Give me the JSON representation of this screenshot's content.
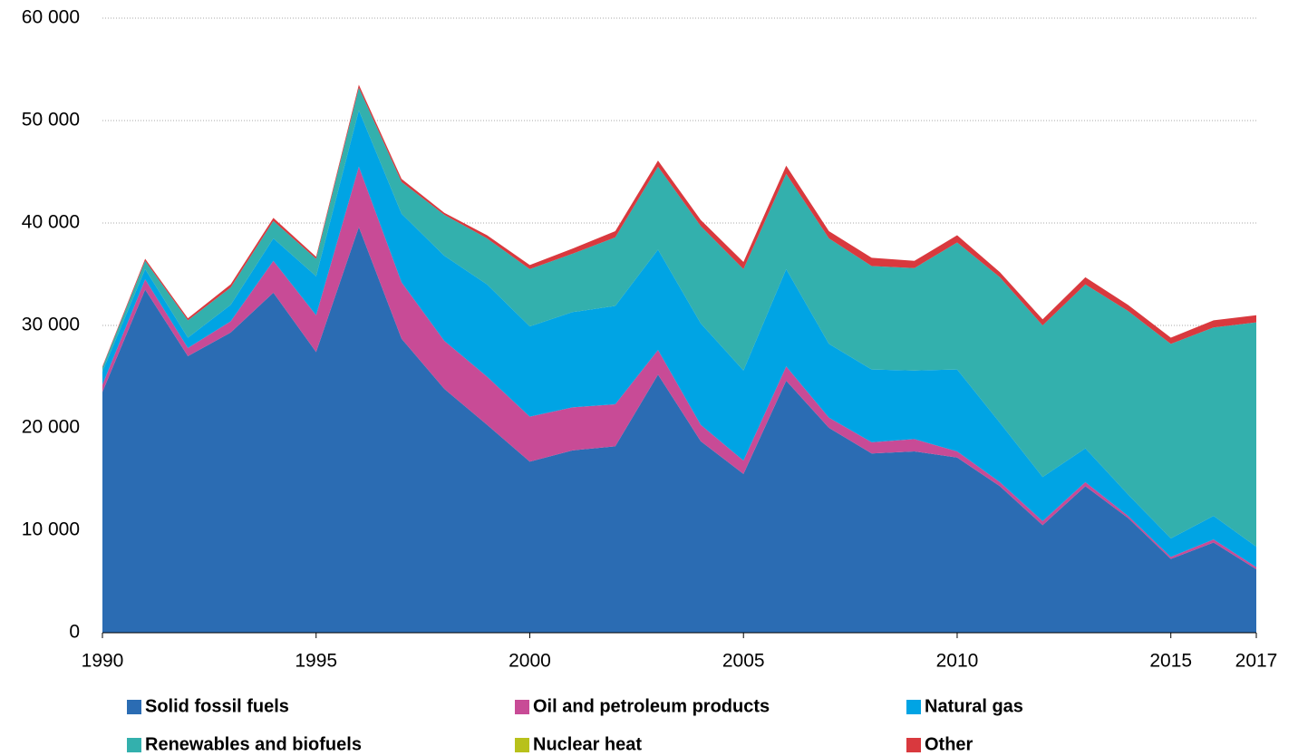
{
  "chart_data": {
    "type": "stacked_area",
    "x": [
      1990,
      1991,
      1992,
      1993,
      1994,
      1995,
      1996,
      1997,
      1998,
      1999,
      2000,
      2001,
      2002,
      2003,
      2004,
      2005,
      2006,
      2007,
      2008,
      2009,
      2010,
      2011,
      2012,
      2013,
      2014,
      2015,
      2016,
      2017
    ],
    "xlim": [
      1990,
      2017
    ],
    "xticks": [
      1990,
      1995,
      2000,
      2005,
      2010,
      2015,
      2017
    ],
    "ylim": [
      0,
      60000
    ],
    "yticks": [
      0,
      {
        "value": 10000,
        "label": "10 000"
      },
      {
        "value": 20000,
        "label": "20 000"
      },
      {
        "value": 30000,
        "label": "30 000"
      },
      {
        "value": 40000,
        "label": "40 000"
      },
      {
        "value": 50000,
        "label": "50 000"
      },
      {
        "value": 60000,
        "label": "60 000"
      }
    ],
    "grid": true,
    "series": [
      {
        "name": "Solid fossil fuels",
        "color": "#2b6cb3",
        "values": [
          23500,
          33500,
          27000,
          29300,
          33200,
          27400,
          39600,
          28700,
          23800,
          20300,
          16700,
          17800,
          18200,
          25200,
          18700,
          15500,
          24600,
          20000,
          17500,
          17700,
          17100,
          14300,
          10500,
          14300,
          11200,
          7200,
          8800,
          6200
        ]
      },
      {
        "name": "Oil and petroleum products",
        "color": "#c84b96",
        "values": [
          700,
          1000,
          800,
          1100,
          3100,
          3600,
          5900,
          5500,
          4700,
          4700,
          4400,
          4200,
          4100,
          2400,
          1600,
          1300,
          1400,
          1000,
          1100,
          1200,
          600,
          400,
          400,
          400,
          200,
          200,
          300,
          200
        ]
      },
      {
        "name": "Natural gas",
        "color": "#00a4e4",
        "values": [
          1300,
          1000,
          1000,
          1600,
          2200,
          3800,
          5500,
          6700,
          8300,
          9000,
          8800,
          9300,
          9600,
          9800,
          9900,
          8800,
          9500,
          7200,
          7100,
          6700,
          8000,
          5800,
          4300,
          3300,
          2100,
          1800,
          2300,
          2000
        ]
      },
      {
        "name": "Renewables and biofuels",
        "color": "#33b0ad",
        "values": [
          400,
          800,
          1700,
          1700,
          1700,
          1700,
          2200,
          3100,
          4000,
          4500,
          5600,
          5700,
          6700,
          8100,
          9500,
          9900,
          9300,
          10300,
          10100,
          10000,
          12400,
          14200,
          14800,
          16000,
          17900,
          19000,
          18400,
          21900
        ]
      },
      {
        "name": "Nuclear heat",
        "color": "#b8c11b",
        "values": [
          0,
          0,
          0,
          0,
          0,
          0,
          0,
          0,
          0,
          0,
          0,
          0,
          0,
          0,
          0,
          0,
          0,
          0,
          0,
          0,
          0,
          0,
          0,
          0,
          0,
          0,
          0,
          0
        ]
      },
      {
        "name": "Other",
        "color": "#d9393e",
        "values": [
          100,
          200,
          200,
          300,
          300,
          200,
          300,
          300,
          200,
          300,
          400,
          500,
          600,
          600,
          600,
          700,
          800,
          700,
          800,
          700,
          700,
          500,
          600,
          700,
          600,
          600,
          700,
          700
        ]
      }
    ]
  }
}
